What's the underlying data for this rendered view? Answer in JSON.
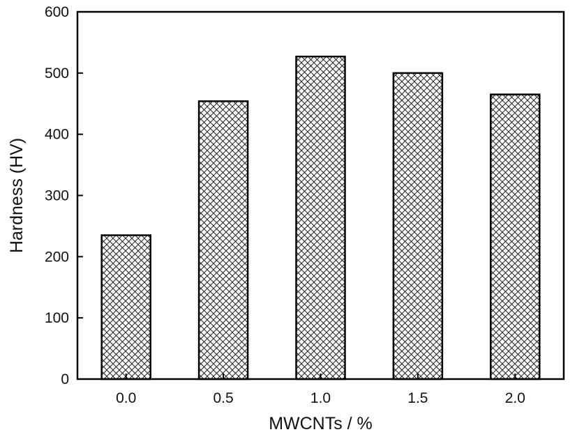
{
  "chart_data": {
    "type": "bar",
    "title": "",
    "xlabel": "MWCNTs / %",
    "ylabel": "Hardness (HV)",
    "categories": [
      "0.0",
      "0.5",
      "1.0",
      "1.5",
      "2.0"
    ],
    "values": [
      235,
      454,
      527,
      500,
      465
    ],
    "ylim": [
      0,
      600
    ],
    "yticks": [
      "0",
      "100",
      "200",
      "300",
      "400",
      "500",
      "600"
    ],
    "bar_fill": "crosshatch",
    "grid": false,
    "legend": "none",
    "colors": {
      "bar_stroke": "#000000",
      "hatch": "#222222",
      "background": "#ffffff"
    }
  }
}
